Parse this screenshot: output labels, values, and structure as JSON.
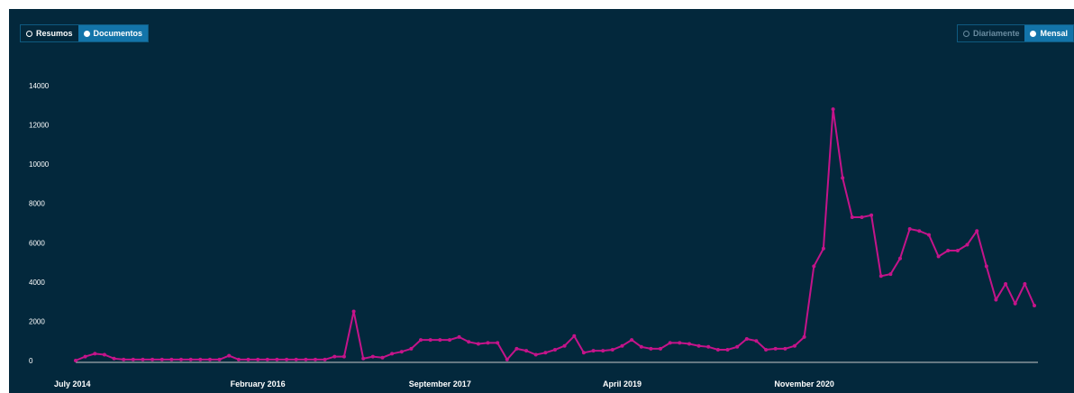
{
  "toolbar": {
    "left": {
      "resumos_label": "Resumos",
      "documentos_label": "Documentos",
      "selected": "Documentos"
    },
    "right": {
      "diariamente_label": "Diariamente",
      "mensal_label": "Mensal",
      "selected": "Mensal"
    }
  },
  "colors": {
    "background": "#03283c",
    "line": "#c4148a",
    "axis_text": "#ffffff",
    "active_toggle": "#1374a9"
  },
  "chart_data": {
    "type": "line",
    "title": "",
    "xlabel": "",
    "ylabel": "",
    "ylim": [
      0,
      14000
    ],
    "yticks": [
      0,
      2000,
      4000,
      6000,
      8000,
      10000,
      12000,
      14000
    ],
    "xticks": [
      "July 2014",
      "February 2016",
      "September 2017",
      "April 2019",
      "November 2020"
    ],
    "x_start": "2014-07",
    "x_interval": "month",
    "grid": false,
    "legend": "none",
    "series": [
      {
        "values": [
          0,
          200,
          350,
          300,
          100,
          50,
          50,
          50,
          50,
          50,
          50,
          50,
          50,
          50,
          50,
          50,
          250,
          50,
          50,
          50,
          50,
          50,
          50,
          50,
          50,
          50,
          50,
          200,
          200,
          2500,
          100,
          200,
          150,
          350,
          450,
          600,
          1050,
          1050,
          1050,
          1050,
          1200,
          950,
          850,
          900,
          900,
          50,
          600,
          500,
          300,
          400,
          550,
          750,
          1250,
          400,
          500,
          500,
          550,
          750,
          1050,
          700,
          600,
          600,
          900,
          900,
          850,
          750,
          700,
          550,
          550,
          700,
          1100,
          1000,
          550,
          600,
          600,
          750,
          1200,
          4800,
          5700,
          12800,
          9300,
          7300,
          7300,
          7400,
          4300,
          4400,
          5200,
          6700,
          6600,
          6400,
          5300,
          5600,
          5600,
          5900,
          6600,
          4800,
          3100,
          3900,
          2900,
          3900,
          2800
        ]
      }
    ]
  }
}
